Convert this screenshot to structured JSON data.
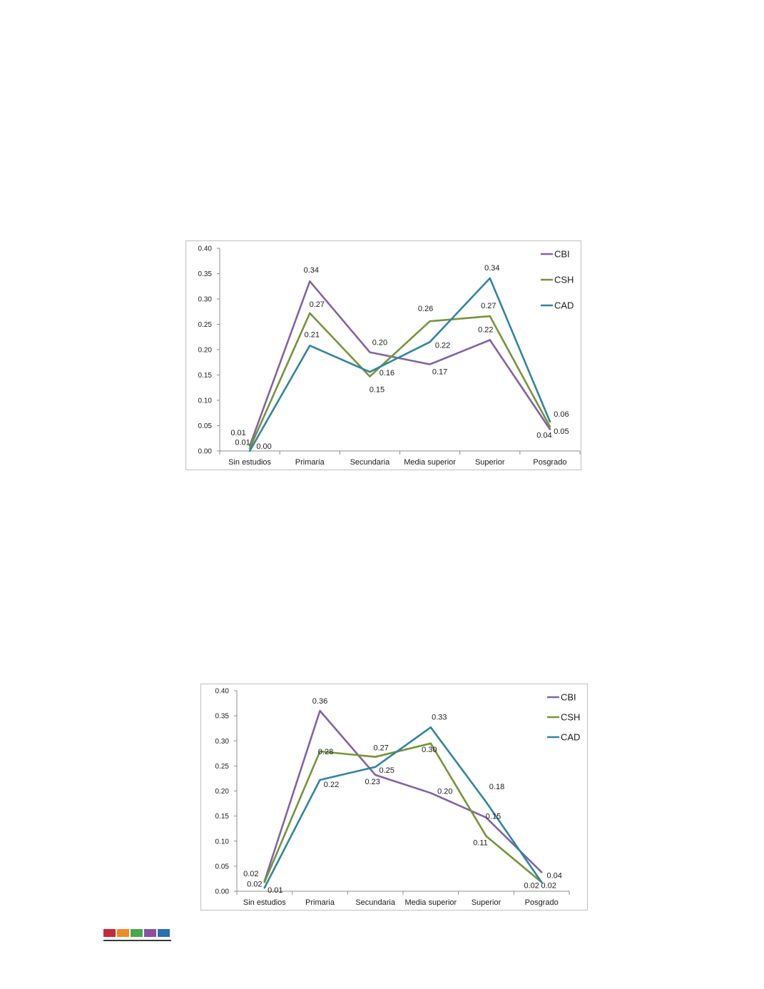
{
  "chart_data": [
    {
      "type": "line",
      "title": "",
      "xlabel": "",
      "ylabel": "",
      "categories": [
        "Sin estudios",
        "Primaria",
        "Secundaria",
        "Media superior",
        "Superior",
        "Posgrado"
      ],
      "ylim": [
        0,
        0.4
      ],
      "yticks": [
        "0.00",
        "0.05",
        "0.10",
        "0.15",
        "0.20",
        "0.25",
        "0.30",
        "0.35",
        "0.40"
      ],
      "grid": false,
      "legend_position": "top-right",
      "series": [
        {
          "name": "CBI",
          "color": "#8064a2",
          "values": [
            0.01,
            0.335,
            0.195,
            0.171,
            0.219,
            0.043
          ],
          "labels": [
            "0.01",
            "0.34",
            "0.20",
            "0.17",
            "0.22",
            "0.04"
          ]
        },
        {
          "name": "CSH",
          "color": "#77933c",
          "values": [
            0.005,
            0.272,
            0.147,
            0.256,
            0.266,
            0.048
          ],
          "labels": [
            "0.01",
            "0.27",
            "0.15",
            "0.26",
            "0.27",
            "0.05"
          ]
        },
        {
          "name": "CAD",
          "color": "#31859c",
          "values": [
            0.0,
            0.208,
            0.156,
            0.215,
            0.341,
            0.058
          ],
          "labels": [
            "0.00",
            "0.21",
            "0.16",
            "0.22",
            "0.34",
            "0.06"
          ]
        }
      ]
    },
    {
      "type": "line",
      "title": "",
      "xlabel": "",
      "ylabel": "",
      "categories": [
        "Sin estudios",
        "Primaria",
        "Secundaria",
        "Media superior",
        "Superior",
        "Posgrado"
      ],
      "ylim": [
        0,
        0.4
      ],
      "yticks": [
        "0.00",
        "0.05",
        "0.10",
        "0.15",
        "0.20",
        "0.25",
        "0.30",
        "0.35",
        "0.40"
      ],
      "grid": false,
      "legend_position": "top-right",
      "series": [
        {
          "name": "CBI",
          "color": "#8064a2",
          "values": [
            0.02,
            0.36,
            0.232,
            0.196,
            0.147,
            0.038
          ],
          "labels": [
            "0.02",
            "0.36",
            "0.23",
            "0.20",
            "0.15",
            "0.04"
          ]
        },
        {
          "name": "CSH",
          "color": "#77933c",
          "values": [
            0.018,
            0.279,
            0.268,
            0.295,
            0.11,
            0.018
          ],
          "labels": [
            "0.02",
            "0.28",
            "0.27",
            "0.30",
            "0.11",
            "0.02"
          ]
        },
        {
          "name": "CAD",
          "color": "#31859c",
          "values": [
            0.007,
            0.222,
            0.248,
            0.327,
            0.178,
            0.018
          ],
          "labels": [
            "0.01",
            "0.22",
            "0.25",
            "0.33",
            "0.18",
            "0.02"
          ]
        }
      ]
    }
  ],
  "footer": {
    "swatch_colors": [
      "#c8283c",
      "#f08a24",
      "#47a84a",
      "#8e4fa0",
      "#2b6fb5"
    ],
    "rule_color": "#3a3a3a"
  }
}
